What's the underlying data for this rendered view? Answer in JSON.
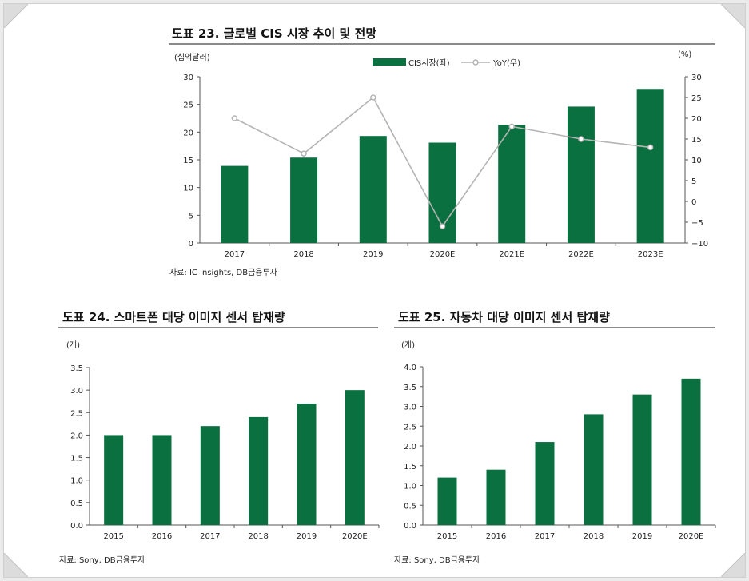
{
  "colors": {
    "bar": "#0a7040",
    "line": "#b4b4b4",
    "axis": "#555555",
    "text": "#222222"
  },
  "chart_data": [
    {
      "type": "bar",
      "title": "도표 23. 글로벌 CIS 시장 추이 및 전망",
      "left_unit": "(십억달러)",
      "right_unit": "(%)",
      "categories": [
        "2017",
        "2018",
        "2019",
        "2020E",
        "2021E",
        "2022E",
        "2023E"
      ],
      "series": [
        {
          "name": "CIS시장(좌)",
          "type": "bar",
          "axis": "left",
          "values": [
            13.9,
            15.4,
            19.3,
            18.1,
            21.3,
            24.6,
            27.8
          ]
        },
        {
          "name": "YoY(우)",
          "type": "line",
          "axis": "right",
          "values": [
            20.0,
            11.5,
            25.0,
            -6.0,
            18.0,
            15.0,
            13.0
          ]
        }
      ],
      "ylim_left": [
        0,
        30
      ],
      "yticks_left": [
        "0",
        "5",
        "10",
        "15",
        "20",
        "25",
        "30"
      ],
      "ylim_right": [
        -10,
        30
      ],
      "yticks_right": [
        "−10",
        "−5",
        "0",
        "5",
        "10",
        "15",
        "20",
        "25",
        "30"
      ],
      "legend_placement": "top-center",
      "grid": false,
      "source": "자료: IC Insights, DB금융투자"
    },
    {
      "type": "bar",
      "title": "도표 24. 스마트폰 대당 이미지 센서 탑재량",
      "unit": "(개)",
      "categories": [
        "2015",
        "2016",
        "2017",
        "2018",
        "2019",
        "2020E"
      ],
      "values": [
        2.0,
        2.0,
        2.2,
        2.4,
        2.7,
        3.0
      ],
      "ylim": [
        0,
        3.5
      ],
      "yticks": [
        "0.0",
        "0.5",
        "1.0",
        "1.5",
        "2.0",
        "2.5",
        "3.0",
        "3.5"
      ],
      "grid": false,
      "source": "자료: Sony, DB금융투자"
    },
    {
      "type": "bar",
      "title": "도표 25. 자동차 대당 이미지 센서 탑재량",
      "unit": "(개)",
      "categories": [
        "2015",
        "2016",
        "2017",
        "2018",
        "2019",
        "2020E"
      ],
      "values": [
        1.2,
        1.4,
        2.1,
        2.8,
        3.3,
        3.7
      ],
      "ylim": [
        0,
        4.0
      ],
      "yticks": [
        "0.0",
        "0.5",
        "1.0",
        "1.5",
        "2.0",
        "2.5",
        "3.0",
        "3.5",
        "4.0"
      ],
      "grid": false,
      "source": "자료: Sony, DB금융투자"
    }
  ]
}
